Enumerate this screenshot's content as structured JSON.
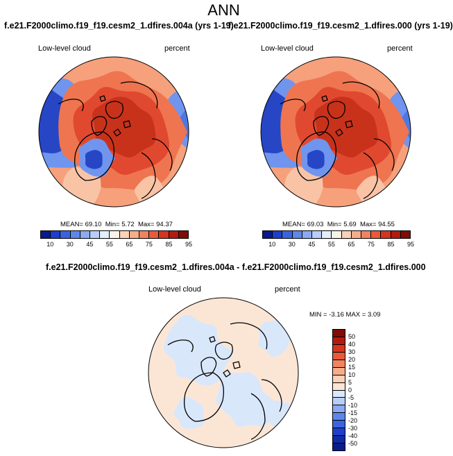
{
  "main_title": "ANN",
  "panels": [
    {
      "title": "f.e21.F2000climo.f19_f19.cesm2_1.dfires.004a (yrs 1-19)",
      "left_label": "Low-level cloud",
      "right_label": "percent",
      "stats": {
        "mean_label": "MEAN=",
        "mean": "69.10",
        "min_label": "Min=",
        "min": "5.72",
        "max_label": "Max=",
        "max": "94.37"
      }
    },
    {
      "title": "f.e21.F2000climo.f19_f19.cesm2_1.dfires.000 (yrs 1-19)",
      "left_label": "Low-level cloud",
      "right_label": "percent",
      "stats": {
        "mean_label": "MEAN=",
        "mean": "69.03",
        "min_label": "Min=",
        "min": "5.69",
        "max_label": "Max=",
        "max": "94.55"
      }
    }
  ],
  "abs_colorbar": {
    "labels": [
      "10",
      "30",
      "45",
      "55",
      "65",
      "75",
      "85",
      "95"
    ],
    "colors": [
      "#0a1a8c",
      "#1f3ecc",
      "#3a63e0",
      "#5e86ec",
      "#8aaaf3",
      "#b8cdf8",
      "#e4edfc",
      "#fdf1e6",
      "#fbd2b8",
      "#f7ac8a",
      "#f2835f",
      "#ea5a3a",
      "#d8341e",
      "#b31b10",
      "#800c05"
    ]
  },
  "diff_panel": {
    "title": "f.e21.F2000climo.f19_f19.cesm2_1.dfires.004a - f.e21.F2000climo.f19_f19.cesm2_1.dfires.000",
    "left_label": "Low-level cloud",
    "right_label": "percent",
    "minmax": {
      "min_label": "MIN =",
      "min": "-3.16",
      "max_label": "MAX =",
      "max": "3.09"
    }
  },
  "diff_colorbar": {
    "labels": [
      "50",
      "40",
      "30",
      "20",
      "15",
      "10",
      "5",
      "0",
      "-5",
      "-10",
      "-15",
      "-20",
      "-30",
      "-40",
      "-50"
    ],
    "colors": [
      "#800c05",
      "#b31b10",
      "#d8341e",
      "#ea5a3a",
      "#f2835f",
      "#f7ac8a",
      "#fbd2b8",
      "#fbe6d6",
      "#d9e7fb",
      "#b8cdf8",
      "#8aaaf3",
      "#5e86ec",
      "#3a63e0",
      "#1f3ecc",
      "#0e2aa6",
      "#0a1a8c"
    ]
  },
  "map": {
    "projection": "north-polar-stereographic",
    "colors": {
      "deep_red": "#c8321b",
      "red": "#e0492f",
      "orange_red": "#ee7550",
      "salmon": "#f6a07c",
      "light_salmon": "#f9c3a6",
      "pale": "#fbe2d0",
      "light_blue": "#c9dbf8",
      "blue": "#6f95ee",
      "mid_blue": "#4d78e4",
      "dark_blue": "#2646c6",
      "diff_peach": "#fbe6d6",
      "diff_blue": "#d9e7fb",
      "coast": "#000000"
    }
  }
}
